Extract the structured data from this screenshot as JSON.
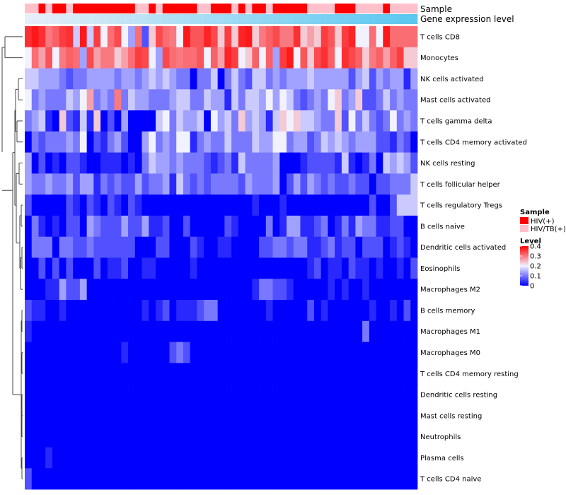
{
  "chart_data": {
    "type": "heatmap",
    "title": "",
    "xlabel": "",
    "ylabel": "",
    "column_annotations": [
      {
        "name": "Sample",
        "categories": [
          "HIV(+)",
          "HIV/TB(+)"
        ],
        "colors": {
          "HIV(+)": "#ff0000",
          "HIV/TB(+)": "#ffc0cb"
        },
        "values": "BBABAABAAAAAAAAABBABAAAAABBAAABABAABAAAAABBBBAAABBBBABBBB"
      },
      {
        "name": "Gene expression level",
        "type": "continuous",
        "low_color": "#e6eef8",
        "high_color": "#5bc7f0"
      }
    ],
    "rows": [
      "T cells CD8",
      "Monocytes",
      "NK cells activated",
      "Mast cells activated",
      "T cells gamma delta",
      "T cells CD4 memory activated",
      "NK cells resting",
      "T cells follicular helper",
      "T cells regulatory  Tregs",
      "B cells naive",
      "Dendritic cells activated",
      "Eosinophils",
      "Macrophages M2",
      "B cells memory",
      "Macrophages M1",
      "Macrophages M0",
      "T cells CD4 memory resting",
      "Dendritic cells resting",
      "Mast cells resting",
      "Neutrophils",
      "Plasma cells",
      "T cells CD4 naive"
    ],
    "n_columns": 57,
    "matrix_encoding": "Each string holds one row, one character per sample column. Digit d represents a level of d/30 (0 to 0.3); letters a-h represent 0.31 to 0.38.",
    "matrix": [
      "fhf9bef5h5e6ad64a27da96hccgd7e7gh79bd99f787ec7eg66a6haaaa",
      "6a8c69ba4d89978aed64da9aac6b8ge67b6b4eh6c7dfb6fdb79b8be77",
      "554443233444434434545433033503532553434445444442452434414",
      "634333546834393544333455335441535546465323436734722353433",
      "345107215170204000056354450645374541576755433726353236343",
      "032333436021342004634366134335333544663442354543444221320",
      "402010221001110103544343332123153333400012222151013054542",
      "433433424413232242334153232333324333402424323223220223335",
      "200000210210210210000000000000000100010000000000002002555",
      "031010220432224224112002000002100003014411230131433112200",
      "033303322322222200022000210011000022332331123122022201210",
      "002020200020112001100000100000000000000001201102110100102",
      "000114224000000000000000000000000133221000001010010000000",
      "211001000000000001012011123300000001000002010000001001020",
      "100000000000000000000000000000000000000000000000030000000",
      "000000000000001000000232000000000000000000000000000000000",
      "000000000000000000000000000000000000000000000000000000000",
      "000000000000000000000000000000000000000000000000000000000",
      "000000000000000000000000000000000000000000000000000000000",
      "000000000000000000000000000000000000000000000000000000000",
      "000100000000000000000000000000000000000000000000000000000",
      "200000000000000000000000000000000000000000000000000000000"
    ],
    "color_scale": {
      "name": "Level",
      "stops": [
        {
          "value": 0.0,
          "color": "#0000ff"
        },
        {
          "value": 0.2,
          "color": "#f2f2ff"
        },
        {
          "value": 0.4,
          "color": "#ff0000"
        }
      ],
      "ticks": [
        0.4,
        0.3,
        0.2,
        0.1,
        0
      ],
      "tick_labels": [
        "0.4",
        "0.3",
        "0.2",
        "0.1",
        "0"
      ]
    },
    "row_dendrogram": true,
    "legend_position": "right"
  }
}
